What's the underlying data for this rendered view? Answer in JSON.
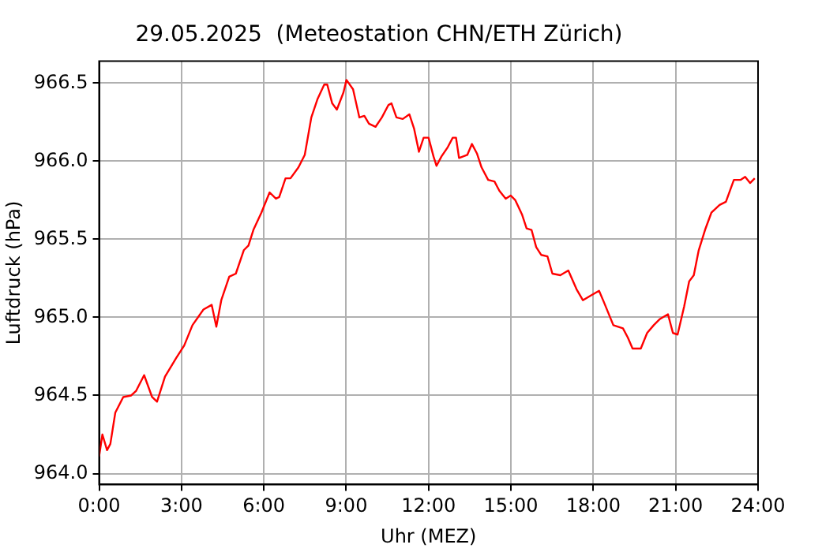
{
  "chart_data": {
    "type": "line",
    "title": "29.05.2025  (Meteostation CHN/ETH Zürich)",
    "xlabel": "Uhr (MEZ)",
    "ylabel": "Luftdruck (hPa)",
    "x": [
      0,
      0.12,
      0.29,
      0.41,
      0.59,
      0.88,
      1.17,
      1.35,
      1.64,
      1.93,
      2.11,
      2.4,
      2.81,
      3.1,
      3.4,
      3.8,
      4.1,
      4.27,
      4.45,
      4.74,
      4.98,
      5.27,
      5.44,
      5.62,
      5.91,
      6.21,
      6.44,
      6.56,
      6.79,
      6.97,
      7.26,
      7.49,
      7.73,
      7.96,
      8.2,
      8.31,
      8.49,
      8.66,
      8.9,
      9.01,
      9.25,
      9.48,
      9.66,
      9.83,
      10.07,
      10.3,
      10.54,
      10.65,
      10.83,
      11.06,
      11.3,
      11.47,
      11.65,
      11.82,
      12,
      12.18,
      12.29,
      12.47,
      12.7,
      12.88,
      13,
      13.11,
      13.41,
      13.58,
      13.76,
      13.93,
      14.17,
      14.4,
      14.58,
      14.81,
      14.99,
      15.16,
      15.4,
      15.57,
      15.75,
      15.92,
      16.1,
      16.33,
      16.51,
      16.8,
      17.09,
      17.39,
      17.62,
      17.91,
      18.21,
      18.38,
      18.73,
      19.08,
      19.26,
      19.43,
      19.73,
      19.96,
      20.2,
      20.43,
      20.72,
      20.9,
      21.07,
      21.31,
      21.49,
      21.66,
      21.84,
      22.07,
      22.3,
      22.6,
      22.83,
      23.12,
      23.36,
      23.53,
      23.71,
      23.88
    ],
    "series": [
      {
        "color": "#ff0000",
        "values": [
          964.11,
          964.25,
          964.15,
          964.19,
          964.39,
          964.49,
          964.5,
          964.53,
          964.63,
          964.49,
          964.46,
          964.62,
          964.74,
          964.82,
          964.95,
          965.05,
          965.08,
          964.94,
          965.11,
          965.26,
          965.28,
          965.43,
          965.46,
          965.56,
          965.67,
          965.8,
          965.76,
          965.77,
          965.89,
          965.89,
          965.96,
          966.04,
          966.28,
          966.4,
          966.49,
          966.49,
          966.37,
          966.33,
          966.44,
          966.52,
          966.46,
          966.28,
          966.29,
          966.24,
          966.22,
          966.28,
          966.36,
          966.37,
          966.28,
          966.27,
          966.3,
          966.21,
          966.06,
          966.15,
          966.15,
          966.03,
          965.97,
          966.03,
          966.09,
          966.15,
          966.15,
          966.02,
          966.04,
          966.11,
          966.05,
          965.96,
          965.88,
          965.87,
          965.81,
          965.76,
          965.78,
          965.75,
          965.66,
          965.57,
          965.56,
          965.45,
          965.4,
          965.39,
          965.28,
          965.27,
          965.3,
          965.18,
          965.11,
          965.14,
          965.17,
          965.1,
          964.95,
          964.93,
          964.87,
          964.8,
          964.8,
          964.9,
          964.95,
          964.99,
          965.02,
          964.9,
          964.89,
          965.07,
          965.23,
          965.27,
          965.43,
          965.56,
          965.67,
          965.72,
          965.74,
          965.88,
          965.88,
          965.9,
          965.86,
          965.89
        ]
      }
    ],
    "xlim": [
      0,
      24
    ],
    "xticks": [
      {
        "value": 0,
        "label": "0:00"
      },
      {
        "value": 3,
        "label": "3:00"
      },
      {
        "value": 6,
        "label": "6:00"
      },
      {
        "value": 9,
        "label": "9:00"
      },
      {
        "value": 12,
        "label": "12:00"
      },
      {
        "value": 15,
        "label": "15:00"
      },
      {
        "value": 18,
        "label": "18:00"
      },
      {
        "value": 21,
        "label": "21:00"
      },
      {
        "value": 24,
        "label": "24:00"
      }
    ],
    "ylim": [
      963.93,
      966.64
    ],
    "yticks": [
      {
        "value": 964,
        "label": "964.0"
      },
      {
        "value": 964.5,
        "label": "964.5"
      },
      {
        "value": 965,
        "label": "965.0"
      },
      {
        "value": 965.5,
        "label": "965.5"
      },
      {
        "value": 966,
        "label": "966.0"
      },
      {
        "value": 966.5,
        "label": "966.5"
      }
    ],
    "grid": true,
    "legend": false,
    "marker": "none",
    "line_style": "solid"
  }
}
